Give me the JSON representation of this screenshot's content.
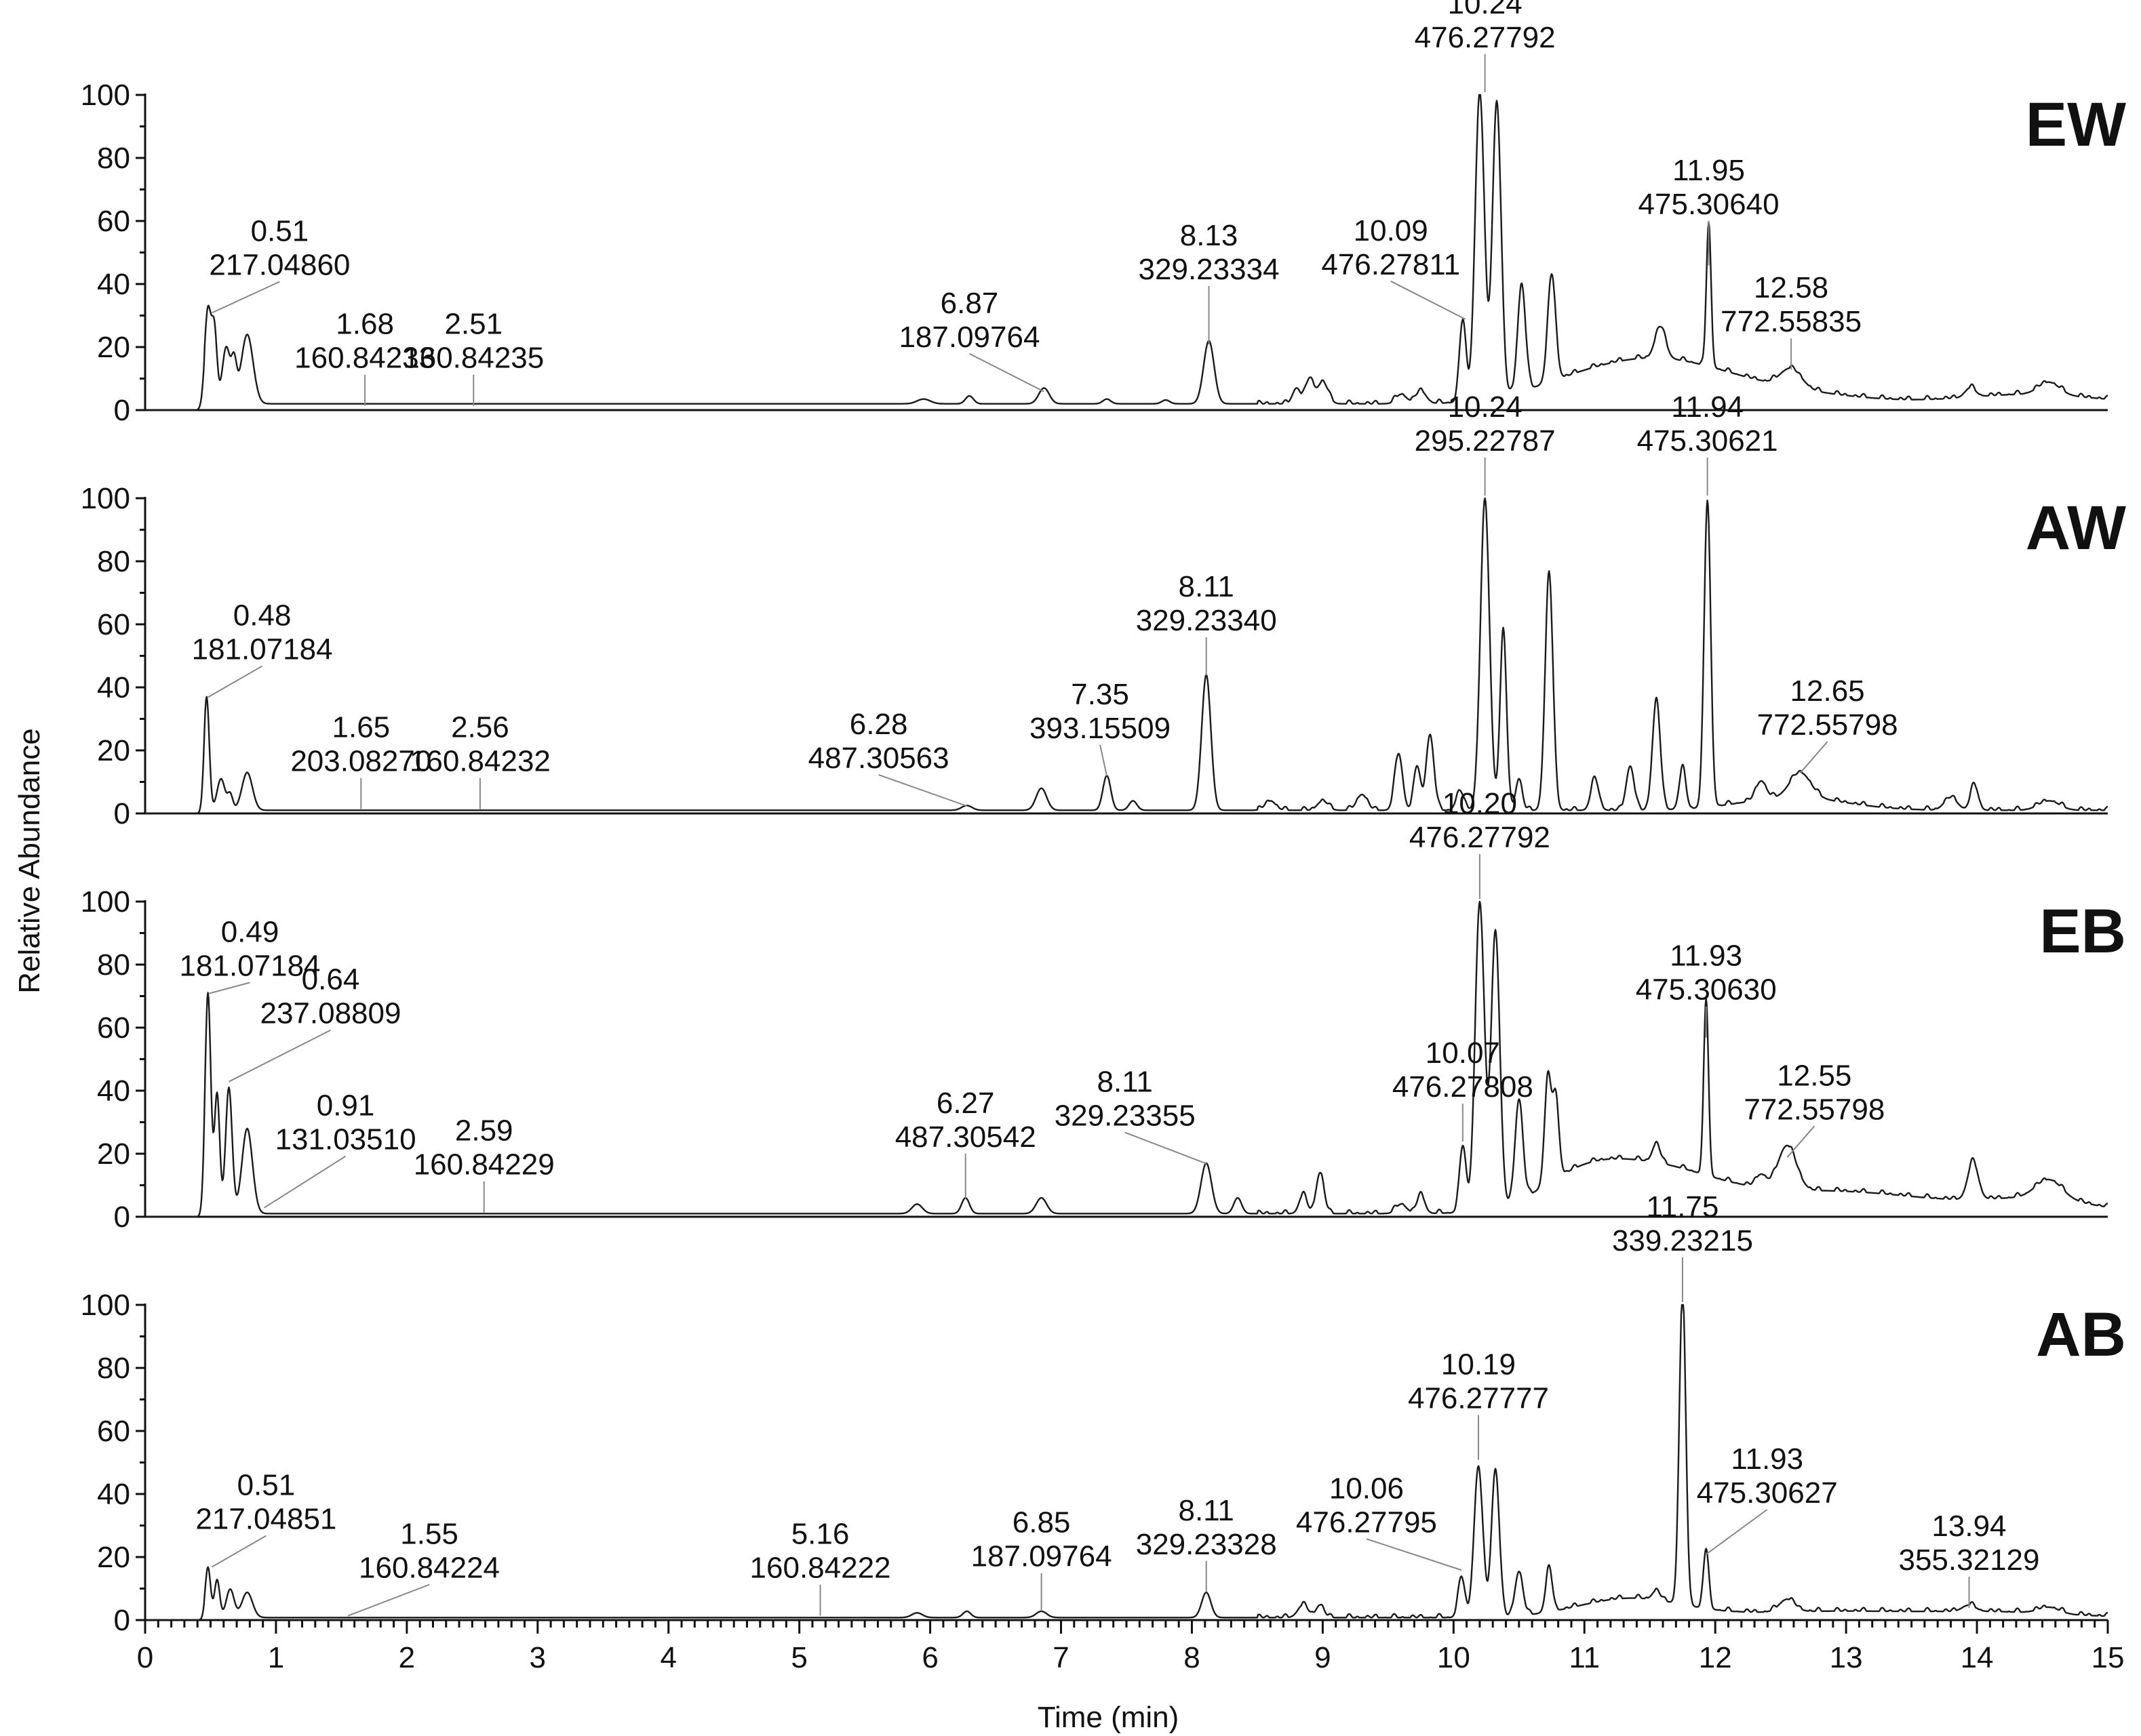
{
  "chart_data": {
    "type": "line",
    "ylabel": "Relative Abundance",
    "xlabel": "Time (min)",
    "xlim": [
      0,
      15
    ],
    "ylim": [
      0,
      100
    ],
    "x_ticks": [
      "0",
      "1",
      "2",
      "3",
      "4",
      "5",
      "6",
      "7",
      "8",
      "9",
      "10",
      "11",
      "12",
      "13",
      "14",
      "15"
    ],
    "y_ticks": [
      "0",
      "20",
      "40",
      "60",
      "80",
      "100"
    ],
    "trace_color": "#1a1a1a",
    "panels": [
      {
        "name": "EW",
        "baseline": 2,
        "peaks": [
          [
            0.48,
            30,
            0.025
          ],
          [
            0.53,
            22,
            0.02
          ],
          [
            0.62,
            18,
            0.03
          ],
          [
            0.68,
            12,
            0.02
          ],
          [
            0.78,
            22,
            0.045
          ],
          [
            5.95,
            1.5,
            0.05
          ],
          [
            6.3,
            2.5,
            0.03
          ],
          [
            6.87,
            5,
            0.04
          ],
          [
            7.35,
            1.5,
            0.03
          ],
          [
            7.8,
            1.2,
            0.03
          ],
          [
            8.13,
            20,
            0.04
          ],
          [
            8.8,
            5,
            0.03
          ],
          [
            8.9,
            8,
            0.03
          ],
          [
            9.0,
            7,
            0.04
          ],
          [
            9.6,
            3,
            0.04
          ],
          [
            9.75,
            4,
            0.04
          ],
          [
            10.07,
            26,
            0.025
          ],
          [
            10.2,
            98,
            0.035
          ],
          [
            10.33,
            94,
            0.033
          ],
          [
            10.52,
            34,
            0.03
          ],
          [
            10.75,
            34,
            0.03
          ],
          [
            11.58,
            10,
            0.04
          ],
          [
            11.95,
            45,
            0.018
          ],
          [
            12.58,
            6,
            0.08
          ],
          [
            13.95,
            3,
            0.04
          ],
          [
            14.55,
            4,
            0.08
          ]
        ],
        "humps": [
          [
            11.55,
            12,
            0.5
          ],
          [
            12.4,
            4,
            0.6
          ],
          [
            10.9,
            4,
            0.4
          ],
          [
            14.4,
            3,
            0.5
          ]
        ],
        "labels": [
          {
            "rt": "0.51",
            "mz": "217.04860",
            "x": 0.51,
            "y": 30
          },
          {
            "rt": "1.68",
            "mz": "160.84233",
            "x": 1.68,
            "y": 0.5
          },
          {
            "rt": "2.51",
            "mz": "160.84235",
            "x": 2.51,
            "y": 0.5
          },
          {
            "rt": "6.87",
            "mz": "187.09764",
            "x": 6.87,
            "y": 5
          },
          {
            "rt": "8.13",
            "mz": "329.23334",
            "x": 8.13,
            "y": 20
          },
          {
            "rt": "10.09",
            "mz": "476.27811",
            "x": 10.09,
            "y": 28
          },
          {
            "rt": "10.24",
            "mz": "476.27792",
            "x": 10.24,
            "y": 100
          },
          {
            "rt": "11.95",
            "mz": "475.30640",
            "x": 11.95,
            "y": 45
          },
          {
            "rt": "12.58",
            "mz": "772.55835",
            "x": 12.58,
            "y": 12
          }
        ]
      },
      {
        "name": "AW",
        "baseline": 1,
        "peaks": [
          [
            0.47,
            36,
            0.02
          ],
          [
            0.58,
            10,
            0.03
          ],
          [
            0.65,
            5,
            0.02
          ],
          [
            0.78,
            12,
            0.04
          ],
          [
            6.28,
            1.5,
            0.04
          ],
          [
            6.85,
            7,
            0.04
          ],
          [
            7.35,
            11,
            0.03
          ],
          [
            7.55,
            3,
            0.03
          ],
          [
            8.11,
            43,
            0.035
          ],
          [
            8.6,
            3,
            0.04
          ],
          [
            9.0,
            3,
            0.04
          ],
          [
            9.3,
            5,
            0.04
          ],
          [
            9.58,
            18,
            0.03
          ],
          [
            9.72,
            14,
            0.025
          ],
          [
            9.82,
            24,
            0.03
          ],
          [
            10.05,
            6,
            0.03
          ],
          [
            10.24,
            98,
            0.035
          ],
          [
            10.38,
            57,
            0.025
          ],
          [
            10.5,
            10,
            0.025
          ],
          [
            10.73,
            75,
            0.03
          ],
          [
            11.08,
            10,
            0.03
          ],
          [
            11.35,
            14,
            0.03
          ],
          [
            11.55,
            35,
            0.03
          ],
          [
            11.75,
            13,
            0.025
          ],
          [
            11.94,
            97,
            0.025
          ],
          [
            12.35,
            6,
            0.04
          ],
          [
            12.65,
            8,
            0.08
          ],
          [
            13.8,
            4,
            0.05
          ],
          [
            13.98,
            8,
            0.03
          ],
          [
            14.55,
            3,
            0.08
          ]
        ],
        "humps": [
          [
            12.6,
            4,
            0.4
          ]
        ],
        "labels": [
          {
            "rt": "0.48",
            "mz": "181.07184",
            "x": 0.48,
            "y": 36
          },
          {
            "rt": "1.65",
            "mz": "203.08270",
            "x": 1.65,
            "y": 0.5
          },
          {
            "rt": "2.56",
            "mz": "160.84232",
            "x": 2.56,
            "y": 0.5
          },
          {
            "rt": "6.28",
            "mz": "487.30563",
            "x": 6.28,
            "y": 1.5
          },
          {
            "rt": "7.35",
            "mz": "393.15509",
            "x": 7.35,
            "y": 11
          },
          {
            "rt": "8.11",
            "mz": "329.23340",
            "x": 8.11,
            "y": 43
          },
          {
            "rt": "10.24",
            "mz": "295.22787",
            "x": 10.24,
            "y": 100
          },
          {
            "rt": "11.94",
            "mz": "475.30621",
            "x": 11.94,
            "y": 100
          },
          {
            "rt": "12.65",
            "mz": "772.55798",
            "x": 12.65,
            "y": 12
          }
        ]
      },
      {
        "name": "EB",
        "baseline": 1,
        "peaks": [
          [
            0.48,
            70,
            0.022
          ],
          [
            0.55,
            38,
            0.02
          ],
          [
            0.64,
            40,
            0.025
          ],
          [
            0.78,
            27,
            0.04
          ],
          [
            5.9,
            3,
            0.04
          ],
          [
            6.27,
            5,
            0.03
          ],
          [
            6.85,
            5,
            0.04
          ],
          [
            8.11,
            16,
            0.04
          ],
          [
            8.35,
            5,
            0.03
          ],
          [
            8.85,
            6,
            0.03
          ],
          [
            8.98,
            13,
            0.03
          ],
          [
            9.6,
            3,
            0.04
          ],
          [
            9.75,
            6,
            0.03
          ],
          [
            10.07,
            21,
            0.025
          ],
          [
            10.2,
            98,
            0.035
          ],
          [
            10.32,
            88,
            0.033
          ],
          [
            10.5,
            32,
            0.03
          ],
          [
            10.72,
            33,
            0.025
          ],
          [
            10.78,
            26,
            0.025
          ],
          [
            11.55,
            6,
            0.03
          ],
          [
            11.93,
            56,
            0.018
          ],
          [
            12.35,
            4,
            0.04
          ],
          [
            12.55,
            14,
            0.07
          ],
          [
            13.97,
            12,
            0.04
          ],
          [
            14.55,
            6,
            0.1
          ]
        ],
        "humps": [
          [
            11.45,
            14,
            0.5
          ],
          [
            12.9,
            7,
            0.8
          ],
          [
            10.95,
            6,
            0.3
          ],
          [
            14.5,
            4,
            0.4
          ]
        ],
        "labels": [
          {
            "rt": "0.49",
            "mz": "181.07184",
            "x": 0.49,
            "y": 70
          },
          {
            "rt": "0.64",
            "mz": "237.08809",
            "x": 0.64,
            "y": 42
          },
          {
            "rt": "0.91",
            "mz": "131.03510",
            "x": 0.91,
            "y": 2
          },
          {
            "rt": "2.59",
            "mz": "160.84229",
            "x": 2.59,
            "y": 0.5
          },
          {
            "rt": "6.27",
            "mz": "487.30542",
            "x": 6.27,
            "y": 5
          },
          {
            "rt": "8.11",
            "mz": "329.23355",
            "x": 8.11,
            "y": 16
          },
          {
            "rt": "10.07",
            "mz": "476.27808",
            "x": 10.07,
            "y": 23
          },
          {
            "rt": "10.20",
            "mz": "476.27792",
            "x": 10.2,
            "y": 100
          },
          {
            "rt": "11.93",
            "mz": "475.30630",
            "x": 11.93,
            "y": 56
          },
          {
            "rt": "12.55",
            "mz": "772.55798",
            "x": 12.55,
            "y": 18
          }
        ]
      },
      {
        "name": "AB",
        "baseline": 0.8,
        "peaks": [
          [
            0.48,
            16,
            0.02
          ],
          [
            0.55,
            12,
            0.02
          ],
          [
            0.65,
            9,
            0.03
          ],
          [
            0.78,
            8,
            0.04
          ],
          [
            5.9,
            1.5,
            0.04
          ],
          [
            6.28,
            2,
            0.03
          ],
          [
            6.85,
            2,
            0.04
          ],
          [
            8.11,
            8,
            0.035
          ],
          [
            8.85,
            4,
            0.04
          ],
          [
            8.98,
            4,
            0.03
          ],
          [
            10.06,
            13,
            0.025
          ],
          [
            10.19,
            48,
            0.033
          ],
          [
            10.32,
            47,
            0.03
          ],
          [
            10.5,
            14,
            0.03
          ],
          [
            10.73,
            14,
            0.025
          ],
          [
            11.55,
            3,
            0.03
          ],
          [
            11.75,
            99,
            0.025
          ],
          [
            11.93,
            19,
            0.02
          ],
          [
            12.55,
            4,
            0.06
          ],
          [
            13.94,
            2,
            0.05
          ],
          [
            14.55,
            2,
            0.08
          ]
        ],
        "humps": [
          [
            11.35,
            6,
            0.4
          ],
          [
            12.9,
            2,
            0.7
          ],
          [
            14.2,
            1.5,
            0.5
          ]
        ],
        "labels": [
          {
            "rt": "0.51",
            "mz": "217.04851",
            "x": 0.51,
            "y": 16
          },
          {
            "rt": "1.55",
            "mz": "160.84224",
            "x": 1.55,
            "y": 0.5
          },
          {
            "rt": "5.16",
            "mz": "160.84222",
            "x": 5.16,
            "y": 0.5
          },
          {
            "rt": "6.85",
            "mz": "187.09764",
            "x": 6.85,
            "y": 2
          },
          {
            "rt": "8.11",
            "mz": "329.23328",
            "x": 8.11,
            "y": 8
          },
          {
            "rt": "10.06",
            "mz": "476.27795",
            "x": 10.06,
            "y": 15
          },
          {
            "rt": "10.19",
            "mz": "476.27777",
            "x": 10.19,
            "y": 50
          },
          {
            "rt": "11.75",
            "mz": "339.23215",
            "x": 11.75,
            "y": 100
          },
          {
            "rt": "11.93",
            "mz": "475.30627",
            "x": 11.93,
            "y": 20
          },
          {
            "rt": "13.94",
            "mz": "355.32129",
            "x": 13.94,
            "y": 3
          }
        ]
      }
    ]
  }
}
